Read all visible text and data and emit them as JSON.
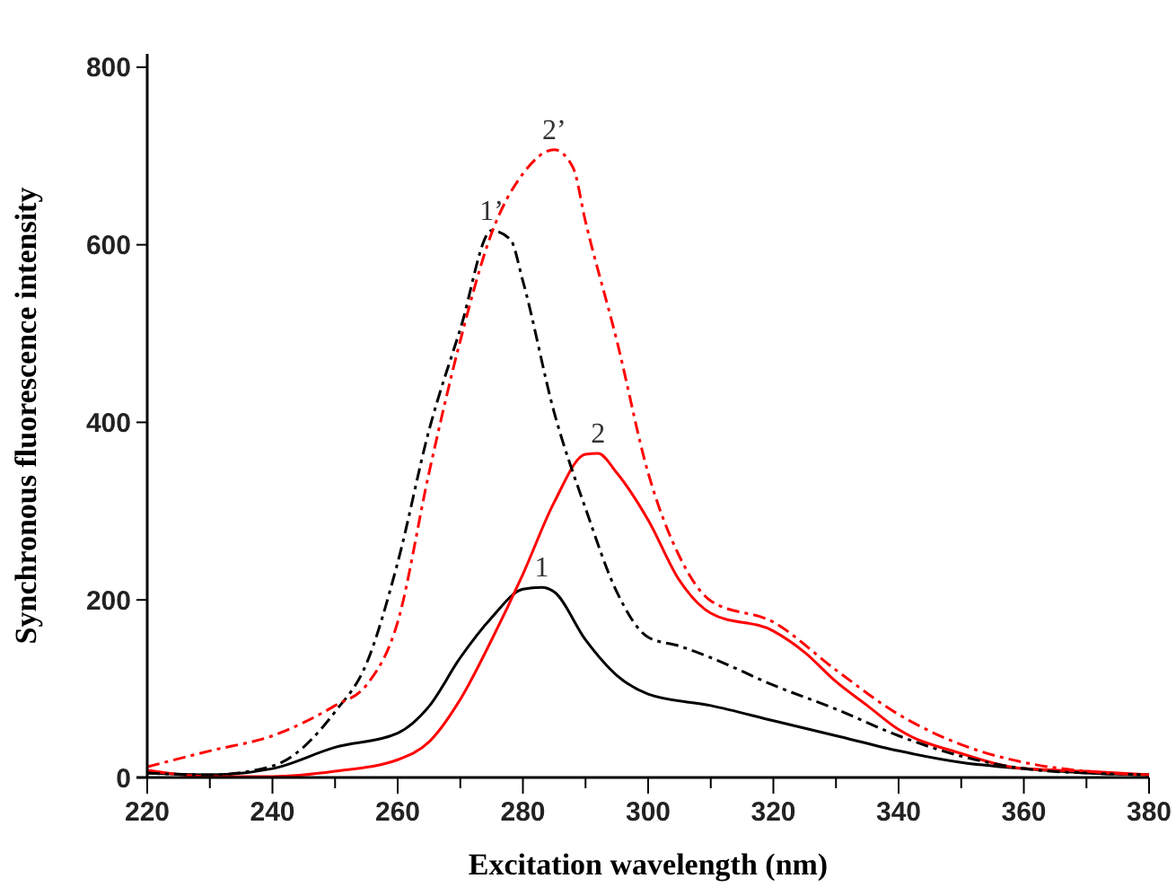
{
  "chart_data": {
    "type": "line",
    "xlabel": "Excitation wavelength (nm)",
    "ylabel": "Synchronous fluorescence intensity",
    "xlim": [
      220,
      380
    ],
    "ylim": [
      0,
      815
    ],
    "xticks": [
      220,
      {
        "value": 230,
        "label": null
      },
      240,
      {
        "value": 250,
        "label": null
      },
      260,
      {
        "value": 270,
        "label": null
      },
      280,
      {
        "value": 290,
        "label": null
      },
      300,
      {
        "value": 310,
        "label": null
      },
      320,
      {
        "value": 330,
        "label": null
      },
      340,
      {
        "value": 350,
        "label": null
      },
      360,
      {
        "value": 370,
        "label": null
      },
      380
    ],
    "yticks": [
      0,
      200,
      400,
      600,
      800
    ],
    "grid": false,
    "marker": "none",
    "series": [
      {
        "name": "1",
        "color": "#000000",
        "line_style": "solid",
        "x": [
          220,
          230,
          240,
          250,
          260,
          265,
          270,
          275,
          280,
          283,
          285,
          290,
          295,
          300,
          310,
          320,
          330,
          340,
          350,
          360,
          370,
          380
        ],
        "values": [
          5,
          3,
          10,
          34,
          50,
          80,
          135,
          180,
          212,
          214,
          209,
          155,
          115,
          94,
          81,
          64,
          47,
          30,
          17,
          10,
          5,
          3
        ]
      },
      {
        "name": "2",
        "color": "#ff0000",
        "line_style": "solid",
        "x": [
          220,
          230,
          240,
          250,
          260,
          265,
          270,
          275,
          280,
          285,
          290,
          292,
          295,
          300,
          305,
          310,
          320,
          325,
          330,
          335,
          340,
          350,
          360,
          370,
          380
        ],
        "values": [
          8,
          1,
          1,
          7,
          20,
          40,
          88,
          155,
          229,
          310,
          364,
          365,
          343,
          290,
          222,
          185,
          165,
          141,
          108,
          81,
          54,
          27,
          10,
          7,
          3
        ]
      },
      {
        "name": "1’",
        "color": "#000000",
        "line_style": "dashed",
        "x": [
          220,
          230,
          240,
          250,
          255,
          260,
          265,
          270,
          275,
          278,
          280,
          285,
          290,
          295,
          300,
          305,
          310,
          320,
          330,
          340,
          350,
          360,
          370,
          380
        ],
        "values": [
          5,
          3,
          13,
          74,
          128,
          242,
          391,
          505,
          616,
          606,
          559,
          411,
          303,
          209,
          158,
          148,
          135,
          104,
          77,
          47,
          24,
          10,
          5,
          3
        ]
      },
      {
        "name": "2’",
        "color": "#ff0000",
        "line_style": "dashed",
        "x": [
          220,
          230,
          240,
          250,
          255,
          260,
          265,
          270,
          275,
          280,
          285,
          288,
          290,
          295,
          300,
          305,
          310,
          320,
          330,
          340,
          350,
          360,
          370,
          380
        ],
        "values": [
          12,
          30,
          47,
          81,
          104,
          175,
          343,
          492,
          613,
          680,
          707,
          687,
          626,
          492,
          343,
          249,
          199,
          175,
          121,
          71,
          37,
          17,
          7,
          3
        ]
      }
    ]
  }
}
